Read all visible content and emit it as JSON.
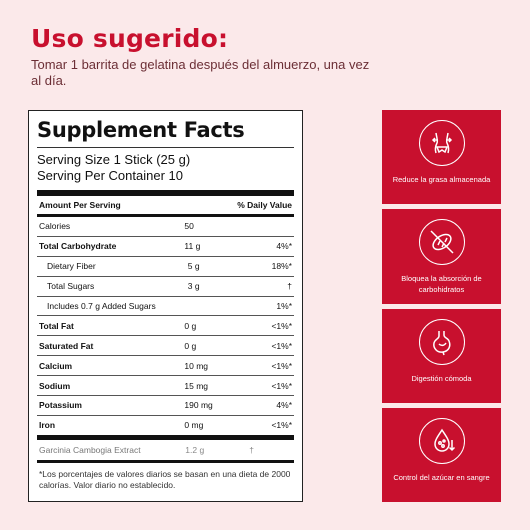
{
  "header": {
    "title": "Uso sugerido:",
    "subtitle": "Tomar 1 barrita de gelatina después del almuerzo, una vez al día."
  },
  "facts": {
    "title": "Supplement Facts",
    "serving_size": "Serving Size 1 Stick (25 g)",
    "servings_per_container": "Serving Per Container 10",
    "col_amount": "Amount Per Serving",
    "col_dv": "% Daily Value",
    "rows": [
      {
        "label": "Calories",
        "amount": "50",
        "dv": ""
      },
      {
        "label": "Total Carbohydrate",
        "amount": "11 g",
        "dv": "4%*"
      },
      {
        "label": "Dietary Fiber",
        "amount": "5 g",
        "dv": "18%*"
      },
      {
        "label": "Total Sugars",
        "amount": "3 g",
        "dv": "†"
      },
      {
        "label": "Includes 0.7 g Added Sugars",
        "amount": "",
        "dv": "1%*"
      },
      {
        "label": "Total Fat",
        "amount": "0 g",
        "dv": "<1%*"
      },
      {
        "label": "Saturated Fat",
        "amount": "0 g",
        "dv": "<1%*"
      },
      {
        "label": "Calcium",
        "amount": "10 mg",
        "dv": "<1%*"
      },
      {
        "label": "Sodium",
        "amount": "15 mg",
        "dv": "<1%*"
      },
      {
        "label": "Potassium",
        "amount": "190 mg",
        "dv": "4%*"
      },
      {
        "label": "Iron",
        "amount": "0 mg",
        "dv": "<1%*"
      }
    ],
    "extra": {
      "label": "Garcinia Cambogia Extract",
      "amount": "1.2 g",
      "dv": "†"
    },
    "footnote": "*Los porcentajes de valores diarios se basan en una dieta de 2000 calorías. Valor diario no establecido."
  },
  "features": [
    {
      "icon": "waist-icon",
      "text": "Reduce la grasa almacenada"
    },
    {
      "icon": "no-bread-icon",
      "text": "Bloquea la absorción de carbohidratos"
    },
    {
      "icon": "stomach-icon",
      "text": "Digestión cómoda"
    },
    {
      "icon": "blood-drop-icon",
      "text": "Control del azúcar en sangre"
    }
  ],
  "colors": {
    "accent": "#c8102e",
    "background": "#fbe9ea"
  }
}
